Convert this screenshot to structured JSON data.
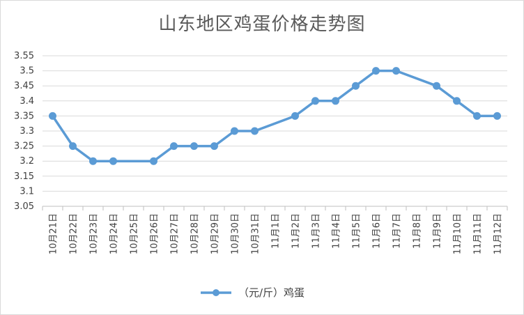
{
  "chart_data": {
    "type": "line",
    "title": "山东地区鸡蛋价格走势图",
    "categories": [
      "10月21日",
      "10月22日",
      "10月23日",
      "10月24日",
      "10月25日",
      "10月26日",
      "10月27日",
      "10月28日",
      "10月29日",
      "10月30日",
      "10月31日",
      "11月1日",
      "11月2日",
      "11月3日",
      "11月4日",
      "11月5日",
      "11月6日",
      "11月7日",
      "11月8日",
      "11月9日",
      "11月10日",
      "11月11日",
      "11月12日"
    ],
    "series": [
      {
        "name": "（元/斤）鸡蛋",
        "color": "#5b9bd5",
        "values": [
          3.35,
          3.25,
          3.2,
          3.2,
          null,
          3.2,
          3.25,
          3.25,
          3.25,
          3.3,
          3.3,
          null,
          3.35,
          3.4,
          3.4,
          3.45,
          3.5,
          3.5,
          null,
          3.45,
          3.4,
          3.35,
          3.35
        ]
      }
    ],
    "ylim": [
      3.05,
      3.55
    ],
    "yticks": [
      "3.05",
      "3.1",
      "3.15",
      "3.2",
      "3.25",
      "3.3",
      "3.35",
      "3.4",
      "3.45",
      "3.5",
      "3.55"
    ],
    "xlabel": "",
    "ylabel": "",
    "grid": true,
    "legend": "bottom"
  }
}
